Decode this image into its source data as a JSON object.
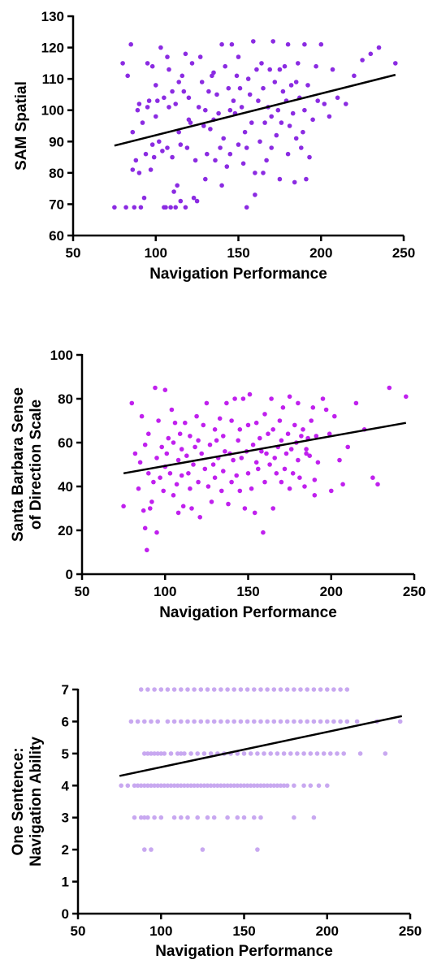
{
  "chart_data": [
    {
      "type": "scatter",
      "title": "",
      "xlabel": "Navigation Performance",
      "ylabel": "SAM Spatial",
      "xlim": [
        50,
        250
      ],
      "ylim": [
        60,
        130
      ],
      "xticks": [
        50,
        100,
        150,
        200,
        250
      ],
      "yticks": [
        60,
        70,
        80,
        90,
        100,
        110,
        120,
        130
      ],
      "grid": false,
      "legend": "none",
      "point_color": "#8B2BE2",
      "fit_line": {
        "x": [
          75,
          245
        ],
        "y": [
          88.7,
          111.3
        ]
      },
      "series": [
        {
          "x": [
            75,
            80,
            82,
            83,
            85,
            86,
            86,
            87,
            88,
            89,
            90,
            90,
            91,
            92,
            93,
            94,
            95,
            95,
            96,
            97,
            98,
            98,
            99,
            100,
            100,
            101,
            102,
            103,
            104,
            105,
            105,
            106,
            107,
            107,
            108,
            108,
            109,
            110,
            110,
            111,
            112,
            112,
            113,
            114,
            114,
            115,
            115,
            116,
            117,
            118,
            118,
            119,
            120,
            120,
            121,
            122,
            123,
            124,
            125,
            126,
            127,
            128,
            129,
            130,
            130,
            131,
            132,
            133,
            134,
            135,
            135,
            136,
            137,
            138,
            139,
            140,
            140,
            141,
            142,
            143,
            144,
            145,
            145,
            146,
            147,
            148,
            149,
            150,
            150,
            151,
            152,
            153,
            154,
            155,
            155,
            156,
            157,
            158,
            159,
            160,
            160,
            161,
            162,
            163,
            164,
            165,
            165,
            166,
            167,
            168,
            169,
            170,
            170,
            171,
            172,
            173,
            174,
            175,
            175,
            176,
            177,
            178,
            179,
            180,
            180,
            181,
            182,
            183,
            184,
            185,
            185,
            186,
            187,
            188,
            189,
            190,
            190,
            191,
            192,
            193,
            195,
            197,
            198,
            200,
            202,
            205,
            207,
            210,
            215,
            220,
            225,
            230,
            235,
            245
          ],
          "y": [
            69,
            115,
            69,
            111,
            121,
            81,
            93,
            69,
            84,
            100,
            80,
            102,
            69,
            96,
            72,
            86,
            115,
            101,
            103,
            81,
            89,
            114,
            85,
            98,
            108,
            103,
            90,
            120,
            87,
            69,
            104,
            69,
            117,
            88,
            113,
            101,
            69,
            106,
            85,
            74,
            69,
            102,
            76,
            93,
            109,
            71,
            89,
            111,
            106,
            69,
            118,
            88,
            97,
            104,
            96,
            115,
            72,
            84,
            71,
            101,
            117,
            109,
            95,
            100,
            78,
            86,
            106,
            94,
            111,
            97,
            112,
            84,
            105,
            99,
            88,
            121,
            76,
            91,
            114,
            82,
            107,
            100,
            86,
            121,
            103,
            99,
            111,
            89,
            117,
            107,
            101,
            83,
            93,
            69,
            88,
            110,
            105,
            96,
            122,
            80,
            73,
            113,
            103,
            90,
            115,
            80,
            107,
            96,
            84,
            101,
            113,
            88,
            98,
            122,
            109,
            92,
            100,
            113,
            78,
            96,
            106,
            114,
            103,
            121,
            86,
            95,
            108,
            99,
            77,
            109,
            91,
            115,
            104,
            88,
            93,
            121,
            100,
            78,
            108,
            85,
            97,
            114,
            103,
            121,
            102,
            98,
            113,
            104,
            102,
            111,
            116,
            118,
            120,
            115
          ]
        }
      ]
    },
    {
      "type": "scatter",
      "title": "",
      "xlabel": "Navigation Performance",
      "ylabel": "Santa Barbara Sense of Direction Scale",
      "ylabel_lines": [
        "Santa Barbara Sense",
        "of Direction Scale"
      ],
      "xlim": [
        50,
        250
      ],
      "ylim": [
        0,
        100
      ],
      "xticks": [
        50,
        100,
        150,
        200,
        250
      ],
      "yticks": [
        0,
        20,
        40,
        60,
        80,
        100
      ],
      "grid": false,
      "legend": "none",
      "point_color": "#C020EE",
      "fit_line": {
        "x": [
          75,
          245
        ],
        "y": [
          46,
          69
        ]
      },
      "series": [
        {
          "x": [
            75,
            80,
            82,
            84,
            85,
            86,
            87,
            88,
            88,
            89,
            90,
            90,
            91,
            92,
            93,
            94,
            95,
            95,
            96,
            97,
            98,
            99,
            100,
            100,
            101,
            102,
            103,
            104,
            105,
            105,
            106,
            107,
            108,
            108,
            109,
            110,
            110,
            111,
            112,
            113,
            114,
            115,
            115,
            116,
            117,
            118,
            119,
            120,
            120,
            121,
            122,
            123,
            124,
            125,
            126,
            127,
            128,
            129,
            130,
            130,
            131,
            132,
            133,
            134,
            135,
            135,
            136,
            137,
            138,
            139,
            140,
            140,
            141,
            142,
            143,
            144,
            145,
            145,
            146,
            147,
            148,
            149,
            150,
            150,
            151,
            152,
            153,
            154,
            155,
            155,
            156,
            157,
            158,
            159,
            160,
            160,
            161,
            162,
            163,
            164,
            165,
            165,
            166,
            167,
            168,
            169,
            170,
            170,
            171,
            172,
            173,
            174,
            175,
            175,
            176,
            177,
            178,
            179,
            180,
            180,
            181,
            182,
            183,
            184,
            185,
            185,
            186,
            187,
            188,
            189,
            190,
            190,
            191,
            192,
            195,
            197,
            199,
            200,
            202,
            205,
            207,
            210,
            215,
            220,
            225,
            228,
            235,
            245
          ],
          "y": [
            31,
            78,
            55,
            39,
            51,
            72,
            29,
            59,
            21,
            11,
            46,
            64,
            30,
            33,
            42,
            85,
            19,
            53,
            70,
            44,
            58,
            38,
            84,
            49,
            55,
            62,
            46,
            75,
            36,
            60,
            69,
            41,
            52,
            28,
            64,
            45,
            57,
            31,
            69,
            54,
            46,
            39,
            63,
            30,
            50,
            58,
            72,
            42,
            61,
            26,
            55,
            68,
            48,
            78,
            40,
            59,
            33,
            50,
            66,
            44,
            61,
            53,
            71,
            38,
            47,
            63,
            56,
            78,
            32,
            55,
            70,
            42,
            52,
            80,
            45,
            61,
            38,
            66,
            53,
            80,
            30,
            56,
            68,
            46,
            82,
            39,
            59,
            28,
            51,
            69,
            48,
            62,
            56,
            19,
            73,
            42,
            55,
            64,
            50,
            80,
            66,
            30,
            53,
            46,
            58,
            70,
            42,
            61,
            76,
            48,
            55,
            64,
            39,
            81,
            57,
            46,
            68,
            60,
            78,
            52,
            44,
            63,
            66,
            40,
            55,
            57,
            62,
            54,
            70,
            76,
            36,
            43,
            63,
            51,
            80,
            75,
            64,
            38,
            72,
            52,
            41,
            58,
            78,
            66,
            44,
            41,
            85,
            81
          ]
        }
      ]
    },
    {
      "type": "scatter",
      "title": "",
      "xlabel": "Navigation Performance",
      "ylabel": "One Sentence: Navigation Ability",
      "ylabel_lines": [
        "One Sentence:",
        "Navigation Ability"
      ],
      "xlim": [
        50,
        250
      ],
      "ylim": [
        0,
        7
      ],
      "xticks": [
        50,
        100,
        150,
        200,
        250
      ],
      "yticks": [
        0,
        1,
        2,
        3,
        4,
        5,
        6,
        7
      ],
      "grid": false,
      "legend": "none",
      "point_color": "#C8A8F0",
      "fit_line": {
        "x": [
          75,
          245
        ],
        "y": [
          4.3,
          6.17
        ]
      },
      "series": [
        {
          "x": [
            76,
            80,
            84,
            86,
            88,
            90,
            92,
            94,
            96,
            98,
            100,
            102,
            104,
            106,
            108,
            110,
            112,
            114,
            116,
            118,
            120,
            122,
            124,
            126,
            128,
            130,
            132,
            134,
            136,
            138,
            140,
            142,
            144,
            146,
            148,
            150,
            152,
            154,
            156,
            158,
            160,
            162,
            164,
            166,
            168,
            170,
            172,
            174,
            176,
            180,
            186,
            190,
            195,
            200,
            82,
            86,
            90,
            94,
            98,
            104,
            108,
            112,
            116,
            120,
            124,
            128,
            132,
            136,
            140,
            144,
            148,
            152,
            156,
            160,
            164,
            168,
            172,
            176,
            180,
            184,
            188,
            192,
            196,
            200,
            204,
            208,
            212,
            218,
            230,
            244,
            88,
            92,
            96,
            100,
            104,
            108,
            112,
            116,
            120,
            124,
            128,
            132,
            136,
            140,
            144,
            148,
            152,
            156,
            160,
            164,
            168,
            172,
            176,
            180,
            184,
            188,
            192,
            196,
            200,
            204,
            208,
            212,
            90,
            92,
            94,
            96,
            98,
            100,
            102,
            106,
            110,
            112,
            114,
            118,
            122,
            126,
            130,
            134,
            138,
            142,
            146,
            150,
            154,
            158,
            162,
            166,
            170,
            174,
            178,
            182,
            186,
            190,
            194,
            198,
            202,
            206,
            210,
            220,
            235,
            84,
            88,
            90,
            92,
            96,
            100,
            108,
            112,
            116,
            122,
            128,
            132,
            140,
            146,
            150,
            156,
            160,
            180,
            192,
            90,
            94,
            125,
            158
          ],
          "y": [
            4,
            4,
            4,
            4,
            4,
            4,
            4,
            4,
            4,
            4,
            4,
            4,
            4,
            4,
            4,
            4,
            4,
            4,
            4,
            4,
            4,
            4,
            4,
            4,
            4,
            4,
            4,
            4,
            4,
            4,
            4,
            4,
            4,
            4,
            4,
            4,
            4,
            4,
            4,
            4,
            4,
            4,
            4,
            4,
            4,
            4,
            4,
            4,
            4,
            4,
            4,
            4,
            4,
            4,
            6,
            6,
            6,
            6,
            6,
            6,
            6,
            6,
            6,
            6,
            6,
            6,
            6,
            6,
            6,
            6,
            6,
            6,
            6,
            6,
            6,
            6,
            6,
            6,
            6,
            6,
            6,
            6,
            6,
            6,
            6,
            6,
            6,
            6,
            6,
            6,
            7,
            7,
            7,
            7,
            7,
            7,
            7,
            7,
            7,
            7,
            7,
            7,
            7,
            7,
            7,
            7,
            7,
            7,
            7,
            7,
            7,
            7,
            7,
            7,
            7,
            7,
            7,
            7,
            7,
            7,
            7,
            7,
            5,
            5,
            5,
            5,
            5,
            5,
            5,
            5,
            5,
            5,
            5,
            5,
            5,
            5,
            5,
            5,
            5,
            5,
            5,
            5,
            5,
            5,
            5,
            5,
            5,
            5,
            5,
            5,
            5,
            5,
            5,
            5,
            5,
            5,
            5,
            5,
            5,
            3,
            3,
            3,
            3,
            3,
            3,
            3,
            3,
            3,
            3,
            3,
            3,
            3,
            3,
            3,
            3,
            3,
            3,
            3,
            2,
            2,
            2,
            2
          ]
        }
      ]
    }
  ]
}
